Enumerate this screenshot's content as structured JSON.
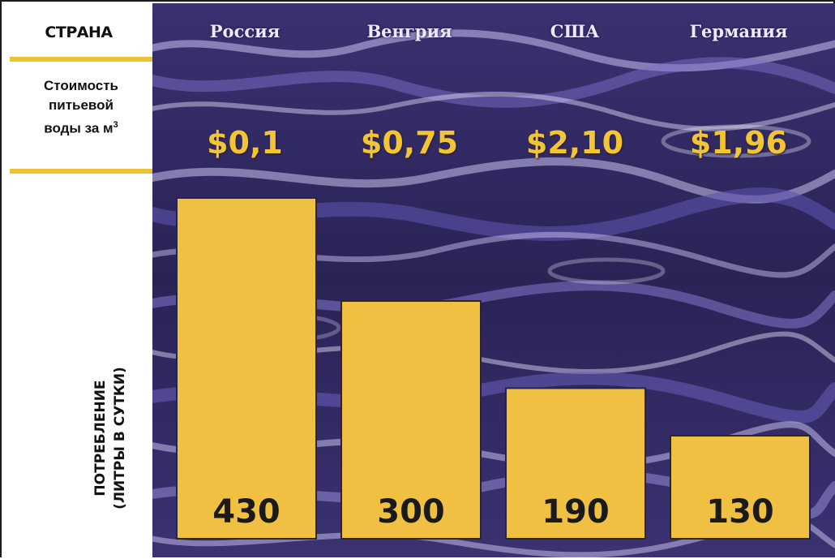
{
  "header": {
    "column_label": "СТРАНА",
    "price_label_line1": "Стоимость",
    "price_label_line2": "питьевой",
    "price_label_line3": "воды за м",
    "price_label_sup": "3",
    "y_label_line1": "ПОТРЕБЛЕНИЕ",
    "y_label_line2": "(ЛИТРЫ В СУТКИ)"
  },
  "colors": {
    "bar": "#f0c043",
    "bar_stroke": "#2a2340",
    "accent": "#efc233",
    "background": "#2b2452"
  },
  "countries": [
    {
      "name": "Россия",
      "price": "$0,1"
    },
    {
      "name": "Венгрия",
      "price": "$0,75"
    },
    {
      "name": "США",
      "price": "$2,10"
    },
    {
      "name": "Германия",
      "price": "$1,96"
    }
  ],
  "chart_data": {
    "type": "bar",
    "categories": [
      "Россия",
      "Венгрия",
      "США",
      "Германия"
    ],
    "values": [
      430,
      300,
      190,
      130
    ],
    "data_labels": [
      "430",
      "300",
      "190",
      "130"
    ],
    "price_per_m3": [
      "$0,1",
      "$0,75",
      "$2,10",
      "$1,96"
    ],
    "ylabel": "ПОТРЕБЛЕНИЕ (ЛИТРЫ В СУТКИ)",
    "ylim": [
      0,
      430
    ],
    "grid": false,
    "legend": "none"
  }
}
